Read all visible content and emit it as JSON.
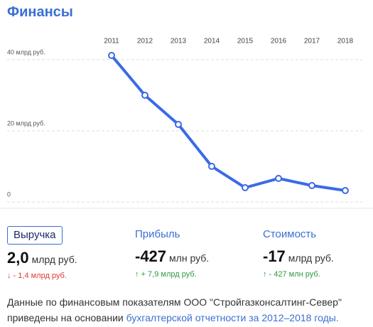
{
  "header": {
    "title": "Финансы"
  },
  "chart_data": {
    "type": "line",
    "categories": [
      "2011",
      "2012",
      "2013",
      "2014",
      "2015",
      "2016",
      "2017",
      "2018"
    ],
    "values": [
      40,
      28.8,
      20.6,
      8.8,
      2.8,
      5.4,
      3.4,
      2.0
    ],
    "color": "#3b6ae8",
    "ylim": [
      0,
      40
    ],
    "yticks": [
      0,
      {
        "value": 20,
        "label": "20 млрд руб."
      },
      {
        "value": 40,
        "label": "40 млрд руб."
      }
    ],
    "grid": true
  },
  "stats": [
    {
      "label": "Выручка",
      "value": "2,0",
      "unit": "млрд руб.",
      "change": "↓ - 1,4 млрд руб."
    },
    {
      "label": "Прибыль",
      "value": "-427",
      "unit": "млн руб.",
      "change": "↑ + 7,9 млрд руб."
    },
    {
      "label": "Стоимость",
      "value": "-17",
      "unit": "млрд руб.",
      "change": "↑ - 427 млн руб."
    }
  ],
  "footer": {
    "text": "Данные по финансовым показателям ООО \"Стройгазконсалтинг-Север\" приведены на основании",
    "link": "бухгалтерской отчетности за 2012–2018 годы."
  }
}
